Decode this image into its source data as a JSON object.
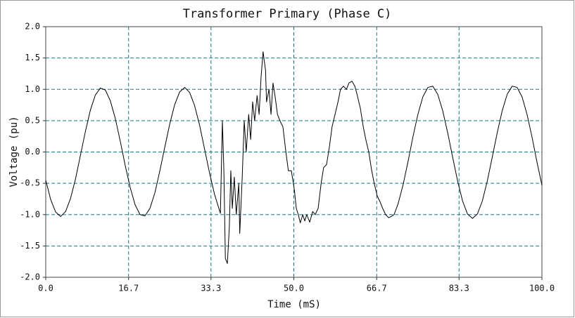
{
  "chart_data": {
    "type": "line",
    "title": "Transformer Primary (Phase C)",
    "x_label": "Time (mS)",
    "y_label": "Voltage (pu)",
    "grid": true,
    "grid_color": "#1a7a8a",
    "xlim": [
      0,
      100
    ],
    "ylim": [
      -2,
      2
    ],
    "xticks": [
      {
        "value": 0,
        "label": "0.0"
      },
      16.7,
      33.3,
      {
        "value": 50,
        "label": "50.0"
      },
      66.7,
      83.3,
      {
        "value": 100,
        "label": "100.0"
      }
    ],
    "yticks": [
      {
        "value": 2,
        "label": "2.0"
      },
      1.5,
      {
        "value": 1,
        "label": "1.0"
      },
      0.5,
      {
        "value": 0,
        "label": "0.0"
      },
      -0.5,
      {
        "value": -1,
        "label": "-1.0"
      },
      -1.5,
      {
        "value": -2,
        "label": "-2.0"
      }
    ],
    "series": [
      {
        "name": "Phase C",
        "color": "#000000",
        "x": [
          0,
          1,
          2,
          3,
          4,
          5,
          6,
          7,
          8,
          9,
          10,
          11,
          12,
          13,
          14,
          15,
          16,
          17,
          18,
          19,
          20,
          21,
          22,
          23,
          24,
          25,
          26,
          27,
          28,
          29,
          30,
          31,
          32,
          33,
          34,
          35.2,
          35.6,
          35.9,
          36.2,
          36.6,
          37.0,
          37.3,
          37.6,
          38.0,
          38.4,
          38.9,
          39.1,
          39.6,
          40.0,
          40.4,
          40.9,
          41.3,
          41.7,
          42.1,
          42.6,
          43.0,
          43.4,
          43.8,
          44.3,
          44.5,
          45.0,
          45.4,
          45.8,
          46.2,
          46.7,
          47.2,
          47.8,
          48.4,
          48.9,
          49.5,
          50.1,
          50.5,
          50.9,
          51.3,
          51.8,
          52.2,
          52.6,
          53.2,
          53.8,
          54.3,
          54.9,
          55.5,
          56.0,
          56.6,
          57.2,
          57.7,
          58.3,
          58.9,
          59.4,
          60.0,
          60.6,
          61.1,
          61.7,
          62.3,
          62.8,
          63.4,
          64.0,
          64.5,
          65.1,
          65.7,
          66.2,
          66.8,
          67.4,
          67.9,
          68.5,
          69.1,
          69.6,
          70.2,
          71,
          72,
          73,
          74,
          75,
          76,
          77,
          78,
          79,
          80,
          81,
          82,
          83,
          84,
          85,
          86,
          87,
          88,
          89,
          90,
          91,
          92,
          93,
          94,
          95,
          96,
          97,
          98,
          99,
          100
        ],
        "values": [
          -0.45,
          -0.76,
          -0.96,
          -1.03,
          -0.95,
          -0.74,
          -0.43,
          -0.05,
          0.33,
          0.67,
          0.91,
          1.02,
          0.99,
          0.82,
          0.54,
          0.18,
          -0.21,
          -0.56,
          -0.84,
          -1.0,
          -1.02,
          -0.9,
          -0.65,
          -0.3,
          0.08,
          0.45,
          0.76,
          0.96,
          1.03,
          0.95,
          0.74,
          0.43,
          0.05,
          -0.33,
          -0.67,
          -0.98,
          0.5,
          -0.3,
          -1.7,
          -1.78,
          -1.2,
          -0.3,
          -0.9,
          -0.4,
          -1.0,
          -0.5,
          -1.3,
          -0.4,
          0.5,
          0.0,
          0.6,
          0.2,
          0.8,
          0.5,
          0.9,
          0.6,
          1.2,
          1.6,
          1.3,
          0.8,
          1.0,
          0.6,
          1.1,
          0.9,
          0.6,
          0.5,
          0.4,
          0.0,
          -0.3,
          -0.3,
          -0.6,
          -0.9,
          -1.0,
          -1.13,
          -1.0,
          -1.1,
          -1.0,
          -1.12,
          -0.95,
          -1.0,
          -0.9,
          -0.5,
          -0.25,
          -0.2,
          0.1,
          0.4,
          0.6,
          0.8,
          1.0,
          1.05,
          1.0,
          1.1,
          1.13,
          1.05,
          0.9,
          0.7,
          0.4,
          0.2,
          0.0,
          -0.3,
          -0.5,
          -0.7,
          -0.8,
          -0.9,
          -1.0,
          -1.05,
          -1.03,
          -1.0,
          -0.83,
          -0.53,
          -0.16,
          0.24,
          0.6,
          0.88,
          1.03,
          1.05,
          0.92,
          0.66,
          0.31,
          -0.08,
          -0.46,
          -0.78,
          -0.99,
          -1.06,
          -0.99,
          -0.78,
          -0.46,
          -0.08,
          0.31,
          0.66,
          0.92,
          1.05,
          1.03,
          0.88,
          0.6,
          0.24,
          -0.16,
          -0.53
        ]
      }
    ]
  }
}
